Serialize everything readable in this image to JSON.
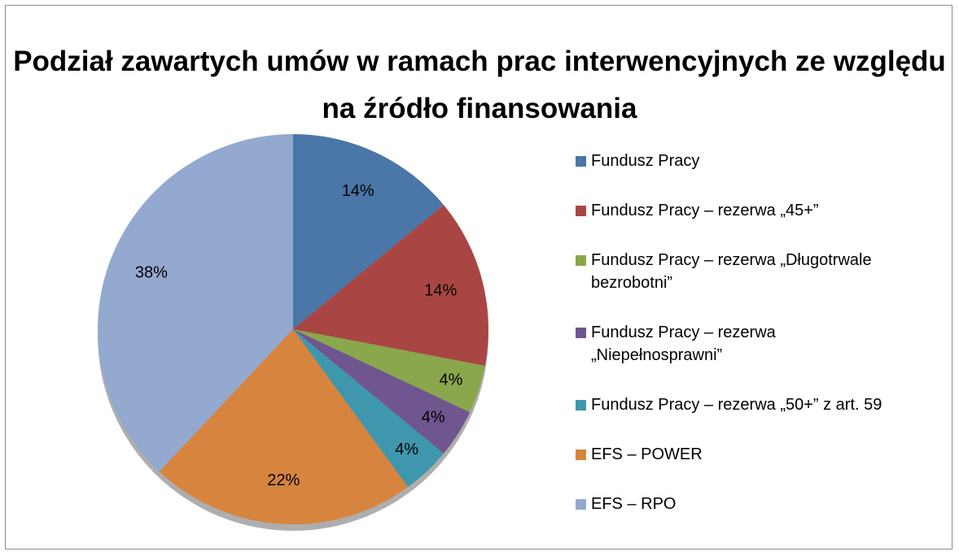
{
  "chart_data": {
    "type": "pie",
    "title": "Podział zawartych umów w ramach prac interwencyjnych ze względu na źródło finansowania",
    "categories": [
      "Fundusz Pracy",
      "Fundusz Pracy – rezerwa „45+”",
      "Fundusz Pracy – rezerwa „Długotrwale bezrobotni”",
      "Fundusz Pracy – rezerwa „Niepełnosprawni”",
      "Fundusz Pracy – rezerwa „50+” z art. 59",
      "EFS – POWER",
      "EFS – RPO"
    ],
    "values": [
      14,
      14,
      4,
      4,
      4,
      22,
      38
    ],
    "value_labels": [
      "14%",
      "14%",
      "4%",
      "4%",
      "4%",
      "22%",
      "38%"
    ],
    "colors": [
      "#4a76a8",
      "#a94643",
      "#8aa74c",
      "#6f568f",
      "#3f97ad",
      "#d7843e",
      "#94a9cf"
    ],
    "legend": "right"
  }
}
